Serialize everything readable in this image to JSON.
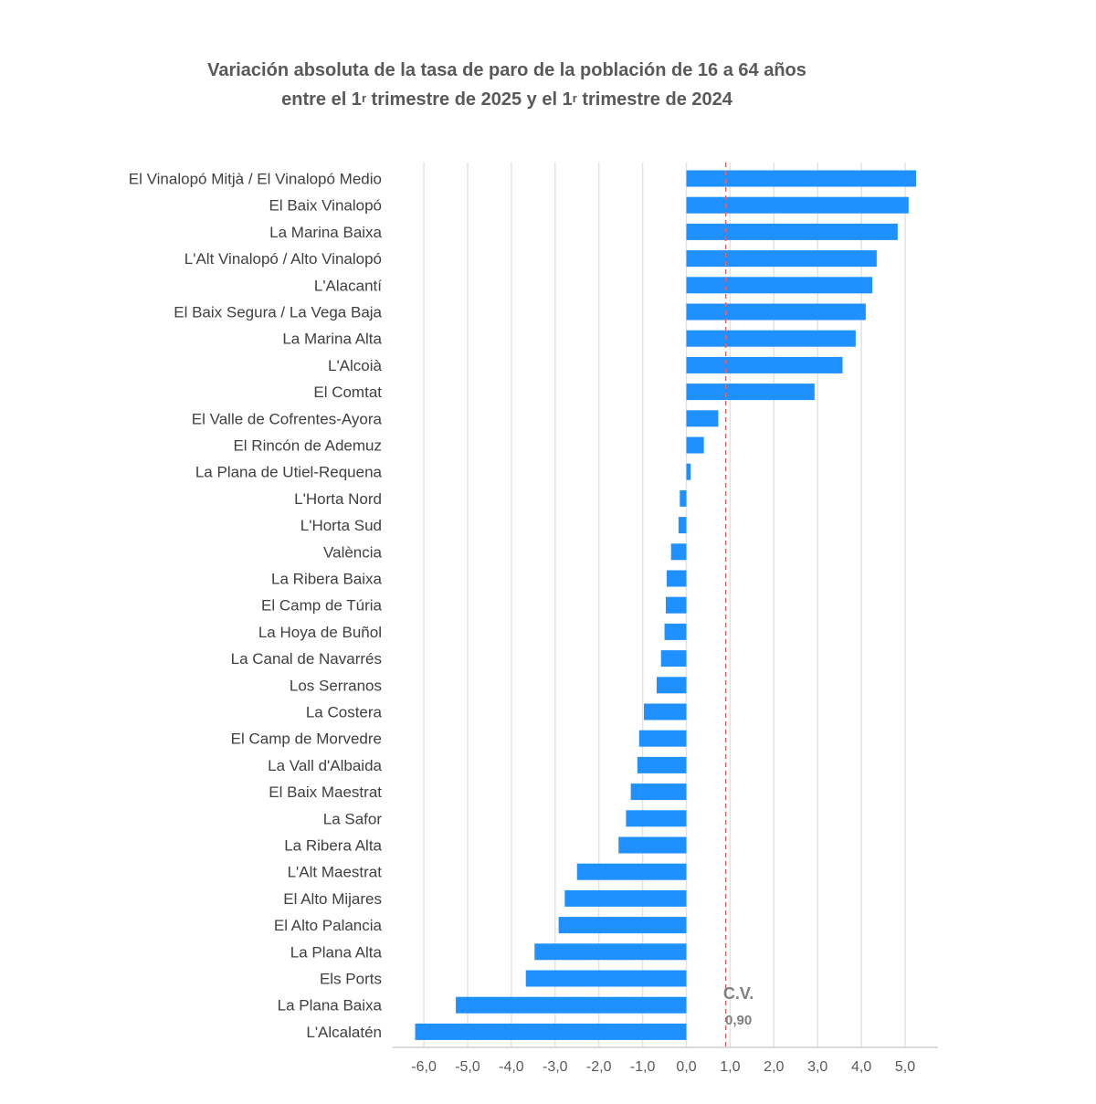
{
  "title_line1": "Variación absoluta de la tasa de paro de la población de 16 a 64 años",
  "title_line2": {
    "p1": "entre el 1",
    "s1": "r",
    "p2": " trimestre de 2025 y el 1",
    "s2": "r",
    "p3": " trimestre de 2024"
  },
  "chart_data": {
    "type": "bar",
    "orientation": "horizontal",
    "categories": [
      "El Vinalopó Mitjà / El Vinalopó Medio",
      "El Baix Vinalopó",
      "La Marina Baixa",
      "L'Alt Vinalopó / Alto Vinalopó",
      "L'Alacantí",
      "El Baix Segura / La Vega Baja",
      "La Marina Alta",
      "L'Alcoià",
      "El Comtat",
      "El Valle de Cofrentes-Ayora",
      "El Rincón de Ademuz",
      "La Plana de Utiel-Requena",
      "L'Horta Nord",
      "L'Horta Sud",
      "València",
      "La Ribera Baixa",
      "El Camp de Túria",
      "La Hoya de Buñol",
      "La Canal de Navarrés",
      "Los Serranos",
      "La Costera",
      "El Camp de Morvedre",
      "La Vall d'Albaida",
      "El Baix Maestrat",
      "La Safor",
      "La Ribera Alta",
      "L'Alt Maestrat",
      "El Alto Mijares",
      "El Alto Palancia",
      "La Plana Alta",
      "Els Ports",
      "La Plana Baixa",
      "L'Alcalatén"
    ],
    "values": [
      5.25,
      5.08,
      4.83,
      4.35,
      4.25,
      4.1,
      3.87,
      3.57,
      2.93,
      0.73,
      0.4,
      0.1,
      -0.15,
      -0.18,
      -0.35,
      -0.45,
      -0.47,
      -0.5,
      -0.58,
      -0.68,
      -0.97,
      -1.08,
      -1.12,
      -1.27,
      -1.38,
      -1.55,
      -2.5,
      -2.78,
      -2.92,
      -3.47,
      -3.67,
      -5.27,
      -6.2
    ],
    "xlim": [
      -6.5,
      5.5
    ],
    "xticks": [
      "-6,0",
      "-5,0",
      "-4,0",
      "-3,0",
      "-2,0",
      "-1,0",
      "0,0",
      "1,0",
      "2,0",
      "3,0",
      "4,0",
      "5,0"
    ],
    "xtick_values": [
      -6,
      -5,
      -4,
      -3,
      -2,
      -1,
      0,
      1,
      2,
      3,
      4,
      5
    ],
    "grid": "vertical",
    "bar_color": "#1e90ff",
    "reference_line": {
      "value": 0.9,
      "label": "C.V.",
      "value_label": "0,90",
      "color": "#e06666",
      "style": "dashed"
    }
  }
}
